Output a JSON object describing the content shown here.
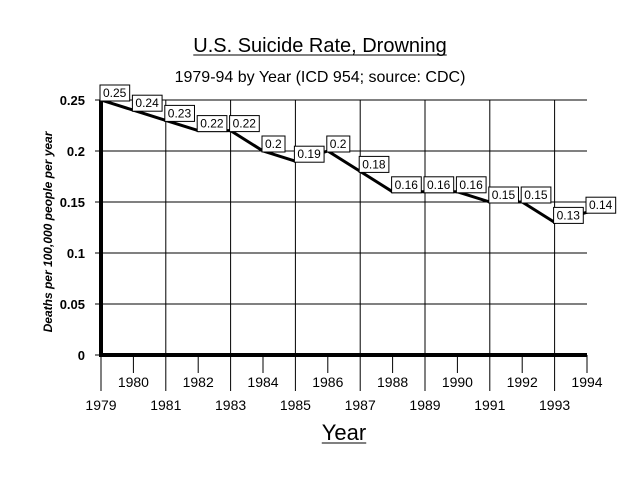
{
  "chart_data": {
    "type": "line",
    "title": "U.S. Suicide Rate, Drowning",
    "subtitle": "1979-94 by Year (ICD 954; source: CDC)",
    "xlabel": "Year",
    "ylabel": "Deaths per 100,000 people per year",
    "x": [
      1979,
      1980,
      1981,
      1982,
      1983,
      1984,
      1985,
      1986,
      1987,
      1988,
      1989,
      1990,
      1991,
      1992,
      1993,
      1994
    ],
    "values": [
      0.25,
      0.24,
      0.23,
      0.22,
      0.22,
      0.2,
      0.19,
      0.2,
      0.18,
      0.16,
      0.16,
      0.16,
      0.15,
      0.15,
      0.13,
      0.14
    ],
    "data_labels": [
      "0.25",
      "0.24",
      "0.23",
      "0.22",
      "0.22",
      "0.2",
      "0.19",
      "0.2",
      "0.18",
      "0.16",
      "0.16",
      "0.16",
      "0.15",
      "0.15",
      "0.13",
      "0.14"
    ],
    "x_tick_labels": [
      "1979",
      "1980",
      "1981",
      "1982",
      "1983",
      "1984",
      "1985",
      "1986",
      "1987",
      "1988",
      "1989",
      "1990",
      "1991",
      "1992",
      "1993",
      "1994"
    ],
    "y_ticks": [
      0,
      0.05,
      0.1,
      0.15,
      0.2,
      0.25
    ],
    "y_tick_labels": [
      "0",
      "0.05",
      "0.1",
      "0.15",
      "0.2",
      "0.25"
    ],
    "ylim": [
      0,
      0.25
    ],
    "xlim": [
      1979,
      1994
    ],
    "grid": true,
    "colors": {
      "line": "#000000",
      "grid": "#000000",
      "background": "#ffffff"
    }
  }
}
